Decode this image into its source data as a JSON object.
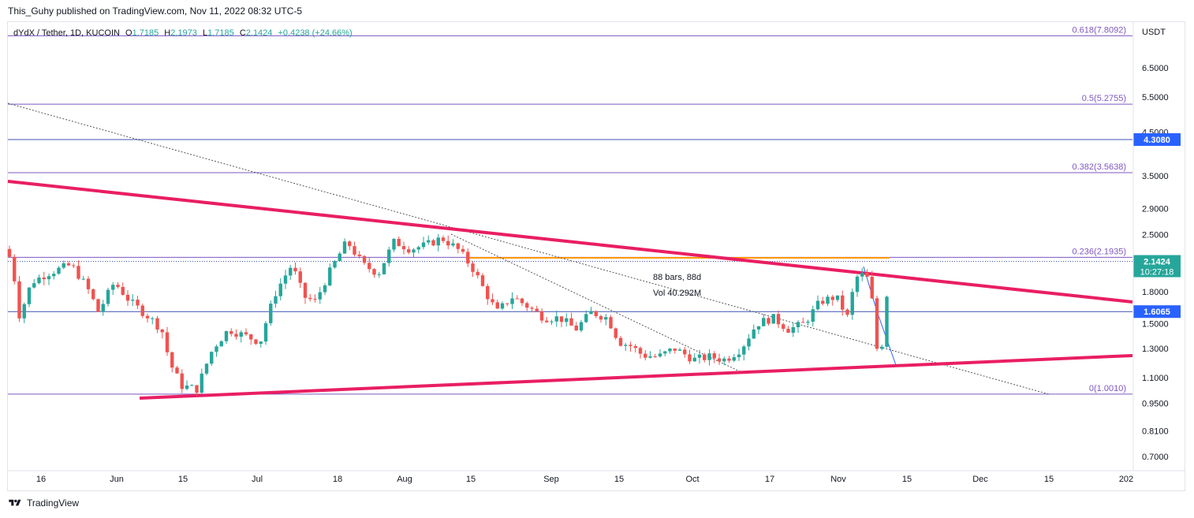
{
  "header": {
    "published": "This_Guhy published on TradingView.com, Nov 11, 2022 08:32 UTC-5"
  },
  "footer": {
    "brand": "TradingView",
    "logo_icon": "tradingview-logo-icon"
  },
  "chart_data": {
    "type": "candlestick",
    "symbol": "dYdX / Tether",
    "interval": "1D",
    "exchange": "KUCOIN",
    "ohlc": {
      "open_label": "O",
      "open": "1.7185",
      "high_label": "H",
      "high": "2.1973",
      "low_label": "L",
      "low": "1.7185",
      "close_label": "C",
      "close": "2.1424",
      "change": "+0.4238 (+24.66%)"
    },
    "currency": "USDT",
    "y_scale": "log",
    "ylim": [
      0.63,
      8.3
    ],
    "y_ticks": [
      "6.5000",
      "5.5000",
      "4.5000",
      "3.5000",
      "2.9000",
      "2.5000",
      "1.8000",
      "1.5000",
      "1.3000",
      "1.1000",
      "0.9500",
      "0.8100",
      "0.7000"
    ],
    "x_ticks": [
      "16",
      "Jun",
      "15",
      "Jul",
      "18",
      "Aug",
      "15",
      "Sep",
      "15",
      "Oct",
      "17",
      "Nov",
      "15",
      "Dec",
      "15",
      "202"
    ],
    "fib_levels": [
      {
        "label": "0.618(7.8092)",
        "value": 7.8092
      },
      {
        "label": "0.5(5.2755)",
        "value": 5.2755
      },
      {
        "label": "0.382(3.5638)",
        "value": 3.5638
      },
      {
        "label": "0.236(2.1935)",
        "value": 2.1935
      },
      {
        "label": "0(1.0010)",
        "value": 1.001
      }
    ],
    "price_badges": [
      {
        "value": "4.3080",
        "time": "",
        "color": "#2962ff"
      },
      {
        "value": "2.1424",
        "time": "10:27:18",
        "color": "#26a69a"
      },
      {
        "value": "1.6065",
        "time": "",
        "color": "#2962ff"
      }
    ],
    "annotation": {
      "bars": "88 bars, 88d",
      "volume": "Vol 40.292M"
    },
    "colors": {
      "up": "#26a69a",
      "down": "#ef5350",
      "trendline": "#e91e63",
      "fib": "#7e57c2",
      "horizontal": "#3f51b5",
      "orange": "#ff9800",
      "dotted": "#555555"
    }
  }
}
